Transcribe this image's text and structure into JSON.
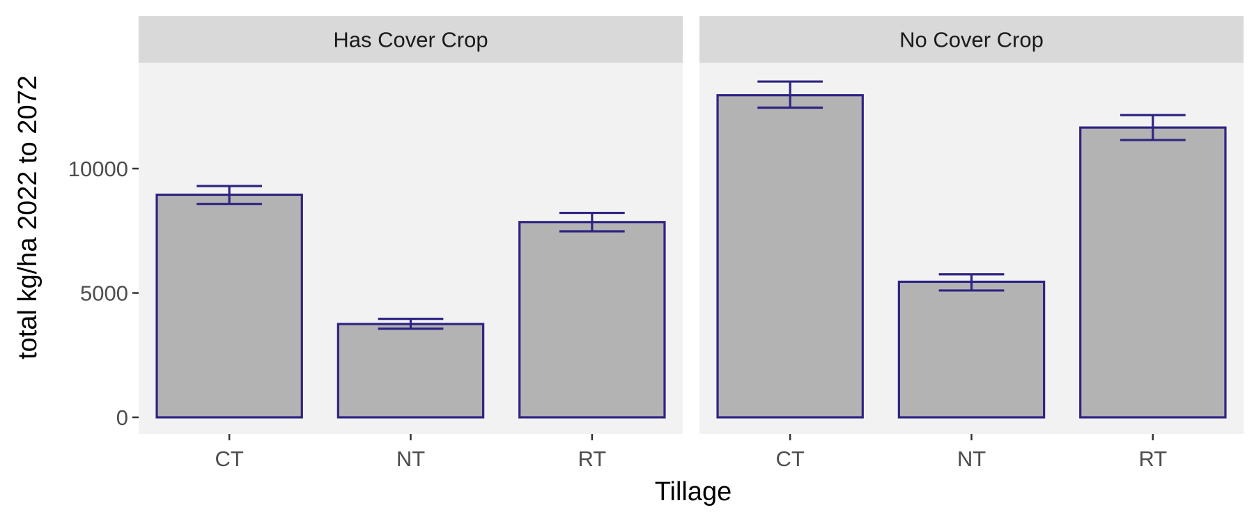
{
  "chart_data": {
    "type": "bar",
    "xlabel": "Tillage",
    "ylabel": "total kg/ha 2022 to 2072",
    "ylim": [
      0,
      14500
    ],
    "yticks": [
      0,
      5000,
      10000
    ],
    "ytick_labels": [
      "0",
      "5000",
      "10000"
    ],
    "grid": false,
    "categories": [
      "CT",
      "NT",
      "RT"
    ],
    "panels": [
      {
        "facet": "Has Cover Crop",
        "values": [
          8950,
          3750,
          7850
        ],
        "error_low": [
          8580,
          3560,
          7480
        ],
        "error_high": [
          9300,
          3960,
          8220
        ]
      },
      {
        "facet": "No Cover Crop",
        "values": [
          12950,
          5450,
          11650
        ],
        "error_low": [
          12450,
          5100,
          11150
        ],
        "error_high": [
          13500,
          5750,
          12150
        ]
      }
    ],
    "colors": {
      "bar_fill": "#B3B3B3",
      "bar_outline": "#2E2483",
      "error_bar": "#2E2483",
      "panel_background": "#F2F2F2",
      "strip_background": "#D9D9D9",
      "axis_tick_text": "#4D4D4D",
      "axis_title_text": "#000000"
    }
  }
}
